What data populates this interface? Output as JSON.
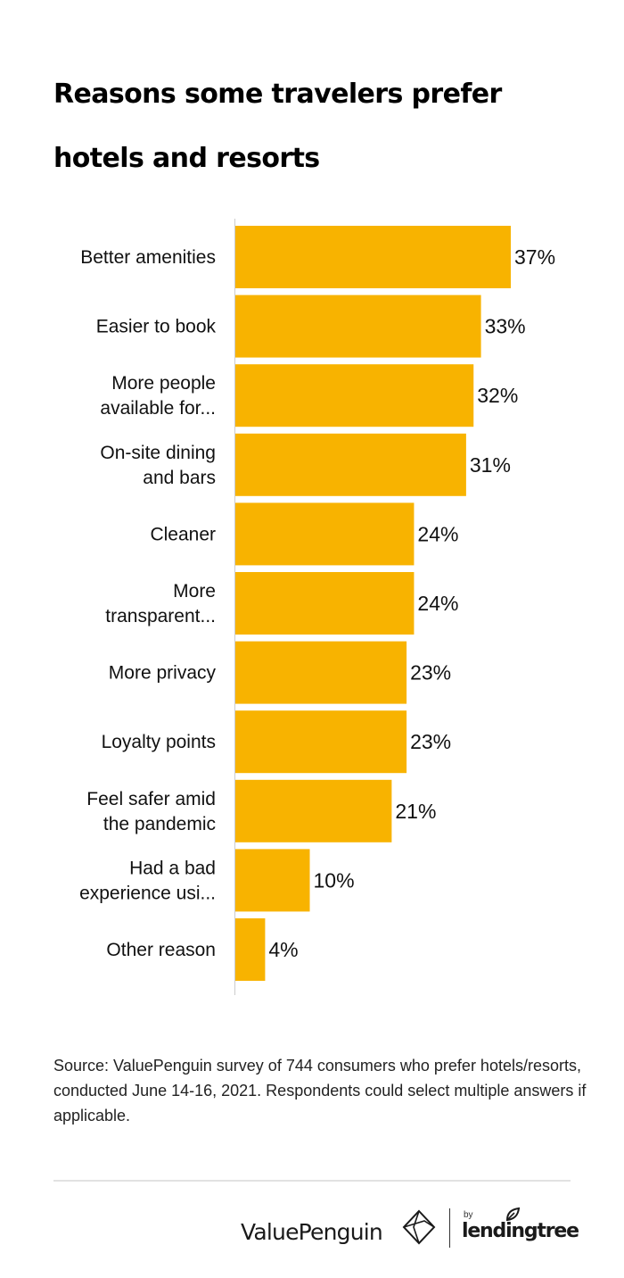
{
  "title": "Reasons some travelers prefer hotels and resorts",
  "source": "Source: ValuePenguin survey of 744 consumers who prefer hotels/resorts, conducted June 14-16, 2021. Respondents could select multiple answers if applicable.",
  "footer": {
    "brand": "ValuePenguin",
    "by": "by",
    "partner": "lendingtree",
    "brand_icon": "valuepenguin-diamond-logo",
    "partner_icon": "lendingtree-leaf-logo"
  },
  "colors": {
    "bar": "#F8B300",
    "text": "#111111",
    "axis": "#cccccc"
  },
  "chart_data": {
    "type": "bar",
    "orientation": "horizontal",
    "categories": [
      [
        "Better amenities"
      ],
      [
        "Easier to book"
      ],
      [
        "More people",
        "available for..."
      ],
      [
        "On-site dining",
        "and bars"
      ],
      [
        "Cleaner"
      ],
      [
        "More",
        "transparent..."
      ],
      [
        "More privacy"
      ],
      [
        "Loyalty points"
      ],
      [
        "Feel safer amid",
        "the pandemic"
      ],
      [
        "Had a bad",
        "experience usi..."
      ],
      [
        "Other reason"
      ]
    ],
    "values": [
      37,
      33,
      32,
      31,
      24,
      24,
      23,
      23,
      21,
      10,
      4
    ],
    "value_labels": [
      "37%",
      "33%",
      "32%",
      "31%",
      "24%",
      "24%",
      "23%",
      "23%",
      "21%",
      "10%",
      "4%"
    ],
    "xlim": [
      0,
      37
    ],
    "xlabel": "",
    "ylabel": "",
    "grid": false,
    "legend": "none"
  }
}
